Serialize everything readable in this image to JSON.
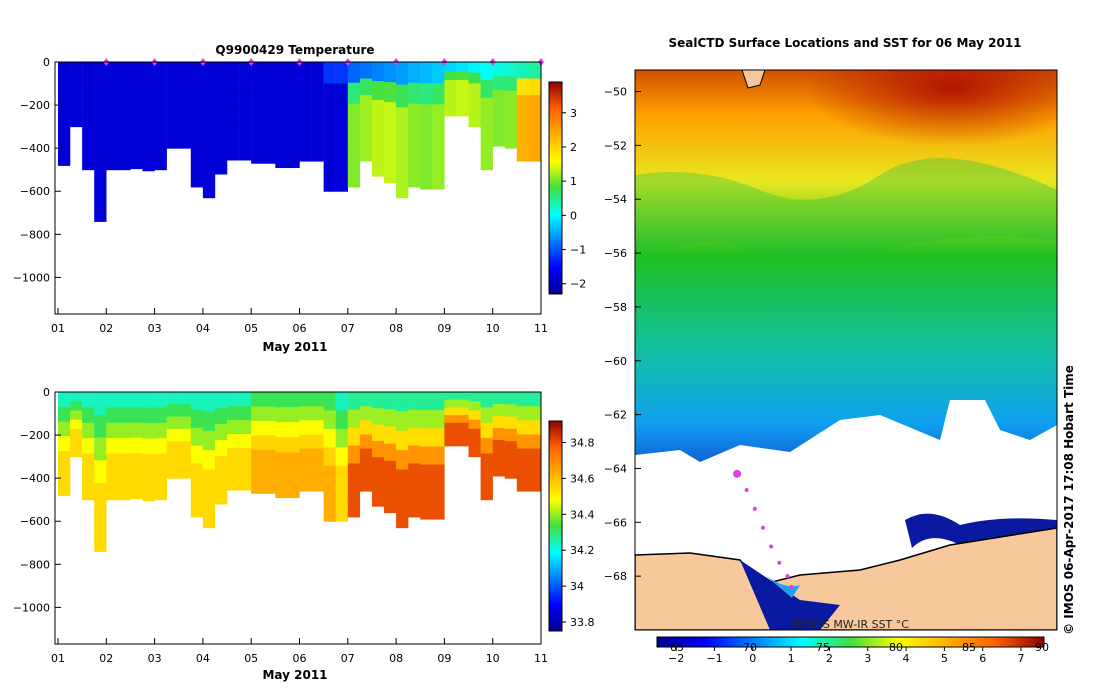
{
  "credit": "© IMOS 06-Apr-2017 17:08 Hobart Time",
  "colors": {
    "land": "#f6c89c",
    "coast": "#000000",
    "marker": "#e040e0"
  },
  "chart_data": [
    {
      "type": "heatmap",
      "id": "temp",
      "title": "Q9900429  Temperature",
      "xlabel": "May 2011",
      "ylabel": "",
      "xticks": [
        "01",
        "02",
        "03",
        "04",
        "05",
        "06",
        "07",
        "08",
        "09",
        "10",
        "11"
      ],
      "ylim": [
        -1170,
        0
      ],
      "yticks": [
        0,
        -200,
        -400,
        -600,
        -800,
        -1000
      ],
      "colorbar": {
        "min": -2.3,
        "max": 3.9,
        "ticks": [
          3,
          2,
          1,
          0,
          -1,
          -2
        ]
      },
      "profile_days": [
        1.25,
        1.5,
        1.75,
        2.0,
        2.25,
        2.5,
        2.75,
        3.0,
        3.25,
        3.5,
        3.75,
        4.0,
        4.25,
        4.5,
        4.75,
        5.0,
        5.25,
        5.5,
        5.75,
        6.0,
        6.25,
        6.5,
        6.75,
        7.0,
        7.25,
        7.5,
        7.75,
        8.0,
        8.25,
        8.5,
        8.75,
        9.0,
        9.25,
        9.5,
        9.75,
        10.0,
        10.25,
        10.5,
        10.75,
        11.0
      ],
      "max_depths": [
        -480,
        -300,
        -500,
        -740,
        -500,
        -500,
        -495,
        -505,
        -500,
        -400,
        -400,
        -580,
        -630,
        -520,
        -455,
        -455,
        -470,
        -470,
        -490,
        -490,
        -460,
        -460,
        -600,
        -600,
        -580,
        -460,
        -530,
        -560,
        -630,
        -580,
        -590,
        -590,
        -250,
        -250,
        -300,
        -500,
        -390,
        -400,
        -460,
        -460
      ],
      "cold_value": -1.8,
      "warm_value": 1.2,
      "surface_layer": -1.0,
      "markers": [
        2,
        3,
        4,
        5,
        6,
        7,
        8,
        9,
        10,
        11
      ]
    },
    {
      "type": "heatmap",
      "id": "sal",
      "title": "",
      "xlabel": "May 2011",
      "ylabel": "",
      "xticks": [
        "01",
        "02",
        "03",
        "04",
        "05",
        "06",
        "07",
        "08",
        "09",
        "10",
        "11"
      ],
      "ylim": [
        -1170,
        0
      ],
      "yticks": [
        0,
        -200,
        -400,
        -600,
        -800,
        -1000
      ],
      "colorbar": {
        "min": 33.75,
        "max": 34.92,
        "ticks": [
          34.8,
          34.6,
          34.4,
          34.2,
          34,
          33.8
        ]
      },
      "surface_value": 34.2,
      "deep_value_west": 34.55,
      "deep_value_east": 34.8
    },
    {
      "type": "heatmap",
      "id": "map",
      "title": "SealCTD Surface Locations and SST for 06 May 2011",
      "xlabel": "",
      "ylabel": "",
      "xticks": [
        "65",
        "70",
        "75",
        "80",
        "85",
        "90"
      ],
      "ylim": [
        -70,
        -49.2
      ],
      "yticks": [
        -50,
        -52,
        -54,
        -56,
        -58,
        -60,
        -62,
        -64,
        -66,
        -68
      ],
      "colorbar": {
        "label": "RENSS MW-IR SST °C",
        "min": -2.5,
        "max": 7.6,
        "ticks": [
          -2,
          -1,
          0,
          1,
          2,
          3,
          4,
          5,
          6,
          7
        ]
      },
      "ice_edge_lat": -63.5,
      "track": [
        [
          69.5,
          -64.2
        ],
        [
          70.2,
          -64.8
        ],
        [
          70.8,
          -65.5
        ],
        [
          71.4,
          -66.2
        ],
        [
          72.0,
          -66.9
        ],
        [
          72.6,
          -67.5
        ],
        [
          73.2,
          -68.0
        ],
        [
          73.5,
          -68.4
        ]
      ]
    }
  ]
}
